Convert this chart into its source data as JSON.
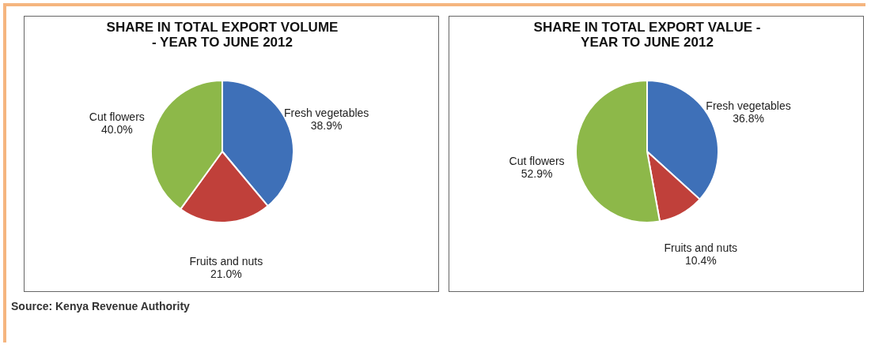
{
  "chart_data": [
    {
      "type": "pie",
      "title": "SHARE IN TOTAL EXPORT VOLUME\n-        YEAR TO JUNE 2012",
      "categories": [
        "Fresh vegetables",
        "Fruits and nuts",
        "Cut flowers"
      ],
      "values": [
        38.9,
        21.0,
        40.0
      ],
      "value_labels": [
        "38.9%",
        "21.0%",
        "40.0%"
      ],
      "colors": [
        "#3e70b8",
        "#c0403a",
        "#8db849"
      ],
      "annotations": [
        "Source: Kenya Revenue Authority"
      ]
    },
    {
      "type": "pie",
      "title": "SHARE IN TOTAL EXPORT VALUE -\nYEAR TO  JUNE  2012",
      "categories": [
        "Fresh vegetables",
        "Fruits and nuts",
        "Cut flowers"
      ],
      "values": [
        36.8,
        10.4,
        52.9
      ],
      "value_labels": [
        "36.8%",
        "10.4%",
        "52.9%"
      ],
      "colors": [
        "#3e70b8",
        "#c0403a",
        "#8db849"
      ]
    }
  ]
}
